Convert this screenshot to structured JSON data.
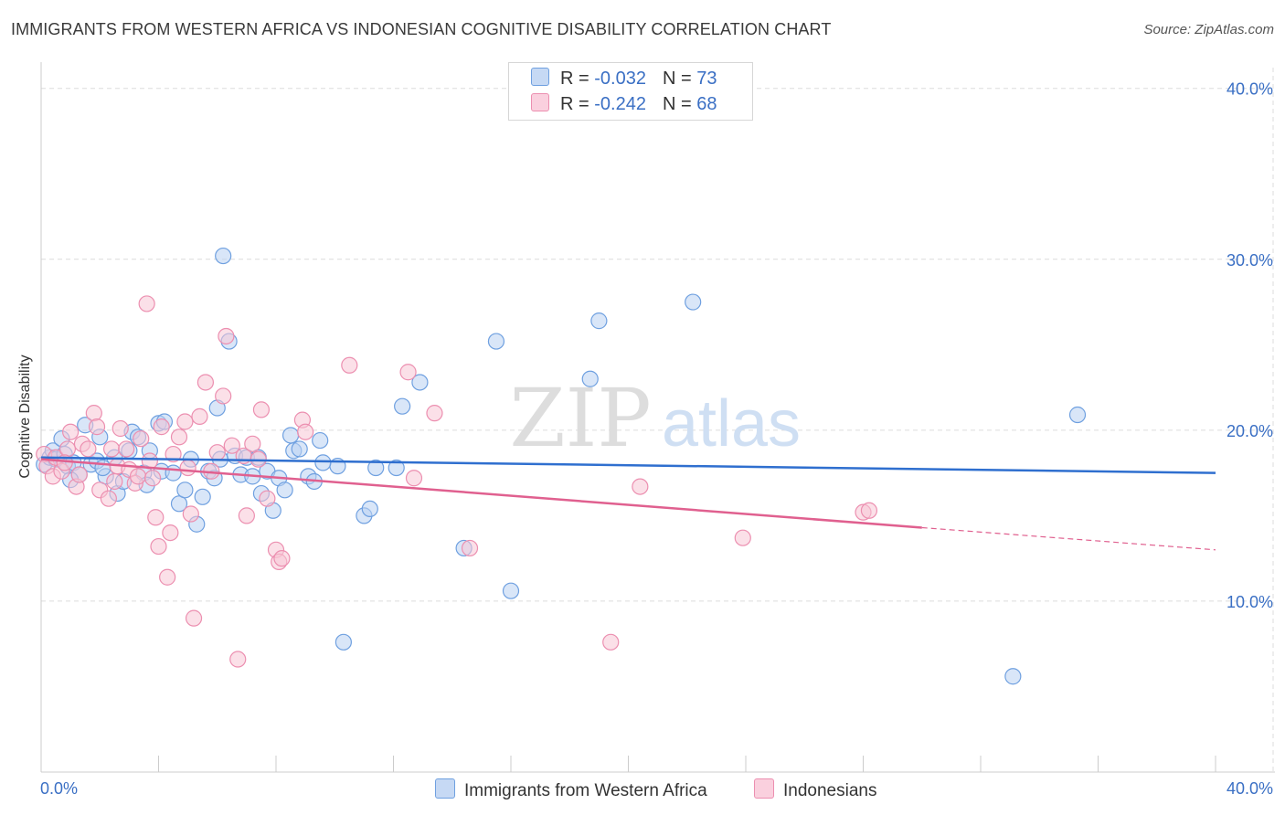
{
  "header": {
    "title": "IMMIGRANTS FROM WESTERN AFRICA VS INDONESIAN COGNITIVE DISABILITY CORRELATION CHART",
    "source": "Source: ZipAtlas.com"
  },
  "watermark": {
    "zip": "ZIP",
    "atlas": "atlas"
  },
  "legend": {
    "rows": [
      {
        "r_label": "R =",
        "r_value": "-0.032",
        "n_label": "N =",
        "n_value": "73",
        "color": "#6fa0e0"
      },
      {
        "r_label": "R =",
        "r_value": "-0.242",
        "n_label": "N =",
        "n_value": "68",
        "color": "#ec8fb0"
      }
    ]
  },
  "chart_data": {
    "type": "scatter",
    "ylabel": "Cognitive Disability",
    "xlim": [
      0,
      40
    ],
    "ylim": [
      0,
      41
    ],
    "x_tick_labels": [
      {
        "value": 0,
        "label": "0.0%"
      },
      {
        "value": 40,
        "label": "40.0%"
      }
    ],
    "y_tick_labels": [
      {
        "value": 10,
        "label": "10.0%"
      },
      {
        "value": 20,
        "label": "20.0%"
      },
      {
        "value": 30,
        "label": "30.0%"
      },
      {
        "value": 40,
        "label": "40.0%"
      }
    ],
    "grid": true,
    "series": [
      {
        "name": "Immigrants from Western Africa",
        "color": "#6fa0e0",
        "fill": "#b9d2f2",
        "trend": {
          "x": [
            0,
            40
          ],
          "y": [
            18.4,
            17.5
          ],
          "color": "#2f6fcf"
        },
        "points": [
          [
            0.1,
            18.0
          ],
          [
            0.3,
            18.4
          ],
          [
            0.4,
            18.8
          ],
          [
            0.5,
            18.3
          ],
          [
            0.7,
            19.5
          ],
          [
            0.8,
            18.6
          ],
          [
            0.9,
            17.9
          ],
          [
            1.1,
            18.1
          ],
          [
            1.3,
            17.4
          ],
          [
            1.5,
            20.3
          ],
          [
            1.7,
            18.0
          ],
          [
            1.9,
            18.2
          ],
          [
            2.0,
            19.6
          ],
          [
            2.2,
            17.3
          ],
          [
            2.5,
            18.4
          ],
          [
            2.6,
            16.3
          ],
          [
            2.8,
            17.0
          ],
          [
            3.0,
            18.8
          ],
          [
            3.1,
            19.9
          ],
          [
            3.3,
            19.6
          ],
          [
            3.5,
            17.5
          ],
          [
            3.6,
            16.8
          ],
          [
            3.7,
            18.8
          ],
          [
            4.0,
            20.4
          ],
          [
            4.1,
            17.6
          ],
          [
            4.2,
            20.5
          ],
          [
            4.5,
            17.5
          ],
          [
            4.7,
            15.7
          ],
          [
            4.9,
            16.5
          ],
          [
            5.1,
            18.3
          ],
          [
            5.3,
            14.5
          ],
          [
            5.5,
            16.1
          ],
          [
            5.7,
            17.6
          ],
          [
            5.9,
            17.2
          ],
          [
            6.0,
            21.3
          ],
          [
            6.2,
            30.2
          ],
          [
            6.4,
            25.2
          ],
          [
            6.6,
            18.5
          ],
          [
            6.8,
            17.4
          ],
          [
            7.0,
            18.4
          ],
          [
            7.2,
            17.3
          ],
          [
            7.4,
            18.4
          ],
          [
            7.5,
            16.3
          ],
          [
            7.7,
            17.6
          ],
          [
            7.9,
            15.3
          ],
          [
            8.1,
            17.2
          ],
          [
            8.3,
            16.5
          ],
          [
            8.5,
            19.7
          ],
          [
            8.6,
            18.8
          ],
          [
            8.8,
            18.9
          ],
          [
            9.1,
            17.3
          ],
          [
            9.3,
            17.0
          ],
          [
            9.5,
            19.4
          ],
          [
            10.1,
            17.9
          ],
          [
            10.3,
            7.6
          ],
          [
            11.0,
            15.0
          ],
          [
            11.2,
            15.4
          ],
          [
            11.4,
            17.8
          ],
          [
            12.1,
            17.8
          ],
          [
            12.3,
            21.4
          ],
          [
            12.9,
            22.8
          ],
          [
            14.4,
            13.1
          ],
          [
            15.5,
            25.2
          ],
          [
            16.0,
            10.6
          ],
          [
            18.7,
            23.0
          ],
          [
            19.0,
            26.4
          ],
          [
            22.2,
            27.5
          ],
          [
            33.1,
            5.6
          ],
          [
            35.3,
            20.9
          ],
          [
            1.0,
            17.1
          ],
          [
            2.1,
            17.8
          ],
          [
            6.1,
            18.3
          ],
          [
            9.6,
            18.1
          ]
        ]
      },
      {
        "name": "Indonesians",
        "color": "#ec8fb0",
        "fill": "#f8c6d6",
        "trend": {
          "x": [
            0,
            30
          ],
          "y": [
            18.3,
            14.3
          ],
          "color": "#e0608f",
          "dashed_x": [
            30,
            40
          ],
          "dashed_y": [
            14.3,
            13.0
          ]
        },
        "points": [
          [
            0.1,
            18.6
          ],
          [
            0.2,
            17.9
          ],
          [
            0.4,
            17.3
          ],
          [
            0.5,
            18.4
          ],
          [
            0.7,
            17.6
          ],
          [
            0.9,
            18.9
          ],
          [
            1.0,
            19.9
          ],
          [
            1.2,
            16.7
          ],
          [
            1.3,
            17.4
          ],
          [
            1.4,
            19.2
          ],
          [
            1.6,
            18.9
          ],
          [
            1.8,
            21.0
          ],
          [
            1.9,
            20.2
          ],
          [
            2.0,
            16.5
          ],
          [
            2.3,
            16.0
          ],
          [
            2.4,
            18.9
          ],
          [
            2.6,
            17.9
          ],
          [
            2.7,
            20.1
          ],
          [
            2.9,
            18.9
          ],
          [
            3.0,
            17.7
          ],
          [
            3.2,
            16.9
          ],
          [
            3.3,
            17.3
          ],
          [
            3.4,
            19.5
          ],
          [
            3.6,
            27.4
          ],
          [
            3.8,
            17.2
          ],
          [
            3.9,
            14.9
          ],
          [
            4.0,
            13.2
          ],
          [
            4.1,
            20.2
          ],
          [
            4.3,
            11.4
          ],
          [
            4.4,
            14.0
          ],
          [
            4.5,
            18.6
          ],
          [
            4.7,
            19.6
          ],
          [
            4.9,
            20.5
          ],
          [
            5.1,
            15.1
          ],
          [
            5.2,
            9.0
          ],
          [
            5.4,
            20.8
          ],
          [
            5.6,
            22.8
          ],
          [
            5.8,
            17.6
          ],
          [
            6.0,
            18.7
          ],
          [
            6.2,
            22.0
          ],
          [
            6.3,
            25.5
          ],
          [
            6.5,
            19.1
          ],
          [
            6.7,
            6.6
          ],
          [
            6.9,
            18.5
          ],
          [
            7.0,
            15.0
          ],
          [
            7.2,
            19.2
          ],
          [
            7.4,
            18.3
          ],
          [
            7.5,
            21.2
          ],
          [
            7.7,
            16.0
          ],
          [
            8.0,
            13.0
          ],
          [
            8.1,
            12.3
          ],
          [
            8.2,
            12.5
          ],
          [
            8.9,
            20.6
          ],
          [
            9.0,
            19.9
          ],
          [
            10.5,
            23.8
          ],
          [
            12.5,
            23.4
          ],
          [
            12.7,
            17.2
          ],
          [
            13.4,
            21.0
          ],
          [
            14.6,
            13.1
          ],
          [
            19.4,
            7.6
          ],
          [
            20.4,
            16.7
          ],
          [
            23.9,
            13.7
          ],
          [
            28.0,
            15.2
          ],
          [
            28.2,
            15.3
          ],
          [
            0.8,
            18.1
          ],
          [
            2.5,
            17.0
          ],
          [
            5.0,
            17.8
          ],
          [
            3.7,
            18.2
          ]
        ]
      }
    ]
  }
}
